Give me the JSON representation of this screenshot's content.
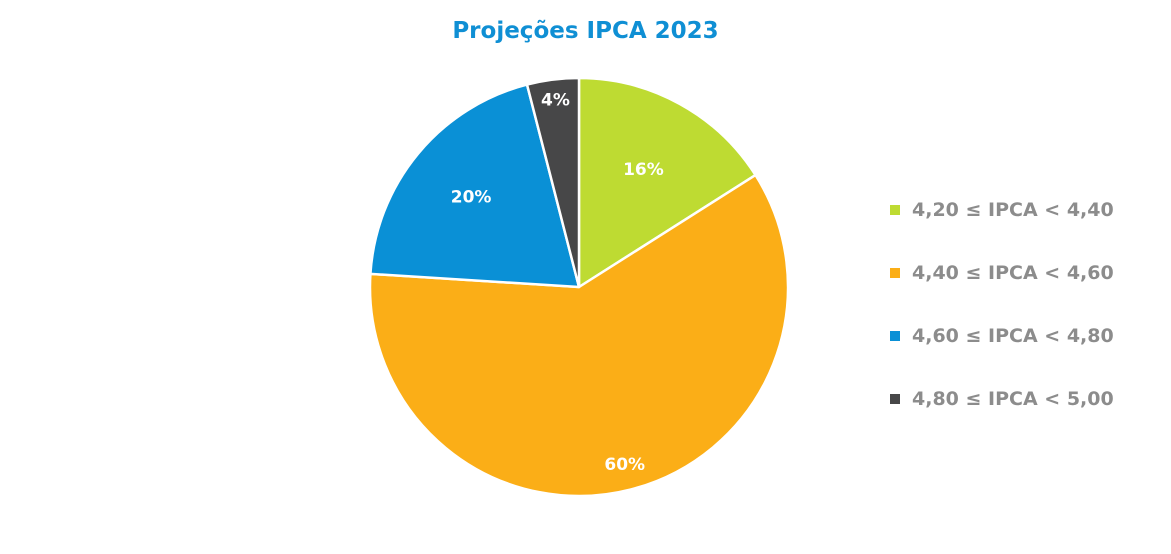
{
  "chart_data": {
    "type": "pie",
    "title": "Projeções IPCA 2023",
    "categories": [
      "4,20 ≤ IPCA < 4,40",
      "4,40 ≤ IPCA < 4,60",
      "4,60 ≤ IPCA < 4,80",
      "4,80 ≤ IPCA < 5,00"
    ],
    "values": [
      16,
      60,
      20,
      4
    ],
    "value_labels": [
      "16%",
      "60%",
      "20%",
      "4%"
    ],
    "colors": [
      "#bedb32",
      "#fbae17",
      "#0a90d6",
      "#474748"
    ],
    "legend_position": "right"
  }
}
